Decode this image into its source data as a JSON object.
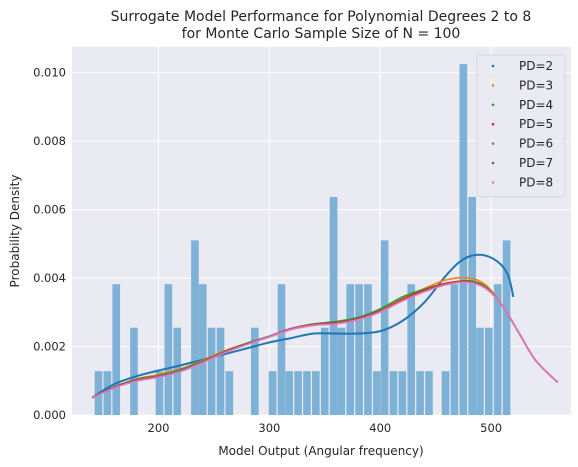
{
  "chart_data": {
    "type": "histogram+line",
    "title_lines": [
      "Surrogate Model Performance for Polynomial Degrees 2 to 8",
      "for Monte Carlo Sample Size of N = 100"
    ],
    "xlabel": "Model Output (Angular frequency)",
    "ylabel": "Probability Density",
    "xlim": [
      122,
      572
    ],
    "ylim": [
      0,
      0.01075
    ],
    "xticks": [
      200,
      300,
      400,
      500
    ],
    "yticks": [
      0.0,
      0.002,
      0.004,
      0.006,
      0.008,
      0.01
    ],
    "ytick_labels": [
      "0.000",
      "0.002",
      "0.004",
      "0.006",
      "0.008",
      "0.010"
    ],
    "grid": true,
    "legend_position": "top-right",
    "histogram": {
      "color": "#7eb1d6",
      "bin_width": 7.8,
      "bins": [
        {
          "x": 142,
          "h": 0.00128
        },
        {
          "x": 150,
          "h": 0.00128
        },
        {
          "x": 158,
          "h": 0.00382
        },
        {
          "x": 166,
          "h": 0.0
        },
        {
          "x": 174,
          "h": 0.00255
        },
        {
          "x": 182,
          "h": 0.0
        },
        {
          "x": 190,
          "h": 0.0
        },
        {
          "x": 197,
          "h": 0.00128
        },
        {
          "x": 205,
          "h": 0.00382
        },
        {
          "x": 213,
          "h": 0.00255
        },
        {
          "x": 221,
          "h": 0.0
        },
        {
          "x": 229,
          "h": 0.0051
        },
        {
          "x": 236,
          "h": 0.00382
        },
        {
          "x": 244,
          "h": 0.00255
        },
        {
          "x": 252,
          "h": 0.00255
        },
        {
          "x": 260,
          "h": 0.00128
        },
        {
          "x": 268,
          "h": 0.0
        },
        {
          "x": 275,
          "h": 0.0
        },
        {
          "x": 283,
          "h": 0.00255
        },
        {
          "x": 291,
          "h": 0.0
        },
        {
          "x": 299,
          "h": 0.00128
        },
        {
          "x": 307,
          "h": 0.00382
        },
        {
          "x": 314,
          "h": 0.00128
        },
        {
          "x": 322,
          "h": 0.00128
        },
        {
          "x": 330,
          "h": 0.00128
        },
        {
          "x": 338,
          "h": 0.00128
        },
        {
          "x": 346,
          "h": 0.00255
        },
        {
          "x": 354,
          "h": 0.00637
        },
        {
          "x": 361,
          "h": 0.00255
        },
        {
          "x": 369,
          "h": 0.00382
        },
        {
          "x": 377,
          "h": 0.00382
        },
        {
          "x": 385,
          "h": 0.00382
        },
        {
          "x": 393,
          "h": 0.00128
        },
        {
          "x": 400,
          "h": 0.0051
        },
        {
          "x": 408,
          "h": 0.00128
        },
        {
          "x": 416,
          "h": 0.00128
        },
        {
          "x": 424,
          "h": 0.00382
        },
        {
          "x": 432,
          "h": 0.00128
        },
        {
          "x": 440,
          "h": 0.00128
        },
        {
          "x": 447,
          "h": 0.0
        },
        {
          "x": 455,
          "h": 0.00128
        },
        {
          "x": 463,
          "h": 0.00382
        },
        {
          "x": 471,
          "h": 0.01025
        },
        {
          "x": 479,
          "h": 0.00637
        },
        {
          "x": 486,
          "h": 0.00255
        },
        {
          "x": 494,
          "h": 0.00255
        },
        {
          "x": 502,
          "h": 0.00382
        },
        {
          "x": 510,
          "h": 0.0051
        },
        {
          "x": 518,
          "h": 0.0
        },
        {
          "x": 525,
          "h": 0.0
        }
      ]
    },
    "series": [
      {
        "name": "PD=2",
        "color": "#1f77b4",
        "x": [
          140,
          160,
          180,
          200,
          220,
          240,
          260,
          280,
          300,
          320,
          340,
          360,
          380,
          400,
          420,
          440,
          460,
          475,
          490,
          505,
          515,
          520
        ],
        "y": [
          0.0005,
          0.0009,
          0.00113,
          0.0013,
          0.00145,
          0.00162,
          0.00178,
          0.00195,
          0.00212,
          0.00225,
          0.00238,
          0.00238,
          0.00238,
          0.00245,
          0.00275,
          0.0033,
          0.0041,
          0.00455,
          0.00468,
          0.0045,
          0.0041,
          0.00345
        ]
      },
      {
        "name": "PD=3",
        "color": "#ff7f0e",
        "x": [
          140,
          160,
          180,
          200,
          220,
          240,
          260,
          280,
          300,
          320,
          340,
          360,
          380,
          400,
          420,
          440,
          460,
          480,
          495,
          510,
          525,
          540,
          560
        ],
        "y": [
          0.0005,
          0.0008,
          0.00105,
          0.00118,
          0.00135,
          0.0016,
          0.00188,
          0.0021,
          0.00228,
          0.0025,
          0.00262,
          0.00268,
          0.0028,
          0.00305,
          0.0034,
          0.0037,
          0.00395,
          0.004,
          0.0038,
          0.0032,
          0.0024,
          0.0016,
          0.00095
        ]
      },
      {
        "name": "PD=4",
        "color": "#2ca02c",
        "x": [
          140,
          160,
          180,
          200,
          220,
          240,
          260,
          280,
          300,
          320,
          340,
          360,
          380,
          400,
          420,
          440,
          460,
          480,
          495,
          510,
          525,
          540,
          560
        ],
        "y": [
          0.0005,
          0.00082,
          0.00104,
          0.00115,
          0.00133,
          0.00158,
          0.00186,
          0.0021,
          0.0023,
          0.00252,
          0.00266,
          0.00273,
          0.00285,
          0.0031,
          0.00345,
          0.00368,
          0.00385,
          0.00392,
          0.00375,
          0.0032,
          0.0024,
          0.0016,
          0.00095
        ]
      },
      {
        "name": "PD=5",
        "color": "#d62728",
        "x": [
          140,
          160,
          180,
          200,
          220,
          240,
          260,
          280,
          300,
          320,
          340,
          360,
          380,
          400,
          420,
          440,
          460,
          480,
          495,
          510,
          525,
          540,
          560
        ],
        "y": [
          0.0005,
          0.00081,
          0.00102,
          0.00113,
          0.0013,
          0.00156,
          0.00185,
          0.00208,
          0.0023,
          0.00253,
          0.00265,
          0.0027,
          0.00282,
          0.00305,
          0.00338,
          0.00365,
          0.00385,
          0.0039,
          0.00372,
          0.0032,
          0.0024,
          0.0016,
          0.00095
        ]
      },
      {
        "name": "PD=6",
        "color": "#9467bd",
        "x": [
          140,
          160,
          180,
          200,
          220,
          240,
          260,
          280,
          300,
          320,
          340,
          360,
          380,
          400,
          420,
          440,
          460,
          480,
          495,
          510,
          525,
          540,
          560
        ],
        "y": [
          0.0005,
          0.0008,
          0.00101,
          0.00112,
          0.0013,
          0.00155,
          0.00184,
          0.00208,
          0.0023,
          0.00252,
          0.00264,
          0.00268,
          0.0028,
          0.00303,
          0.00335,
          0.00362,
          0.00382,
          0.00388,
          0.0037,
          0.0032,
          0.0024,
          0.0016,
          0.00095
        ]
      },
      {
        "name": "PD=7",
        "color": "#8c564b",
        "x": [
          140,
          160,
          180,
          200,
          220,
          240,
          260,
          280,
          300,
          320,
          340,
          360,
          380,
          400,
          420,
          440,
          460,
          480,
          495,
          510,
          525,
          540,
          560
        ],
        "y": [
          0.0005,
          0.0008,
          0.001,
          0.00111,
          0.00128,
          0.00154,
          0.00183,
          0.00207,
          0.00229,
          0.00251,
          0.00263,
          0.00267,
          0.00279,
          0.00302,
          0.00334,
          0.00362,
          0.00383,
          0.00389,
          0.00371,
          0.0032,
          0.0024,
          0.0016,
          0.00095
        ]
      },
      {
        "name": "PD=8",
        "color": "#e377c2",
        "x": [
          140,
          160,
          180,
          200,
          220,
          240,
          260,
          280,
          300,
          320,
          340,
          360,
          380,
          400,
          420,
          440,
          460,
          480,
          495,
          510,
          525,
          540,
          560
        ],
        "y": [
          0.0005,
          0.00079,
          0.00099,
          0.0011,
          0.00127,
          0.00153,
          0.00182,
          0.00206,
          0.00228,
          0.0025,
          0.00262,
          0.00266,
          0.00278,
          0.00301,
          0.00333,
          0.0036,
          0.00381,
          0.00387,
          0.0037,
          0.0032,
          0.0024,
          0.0016,
          0.00095
        ]
      }
    ]
  }
}
